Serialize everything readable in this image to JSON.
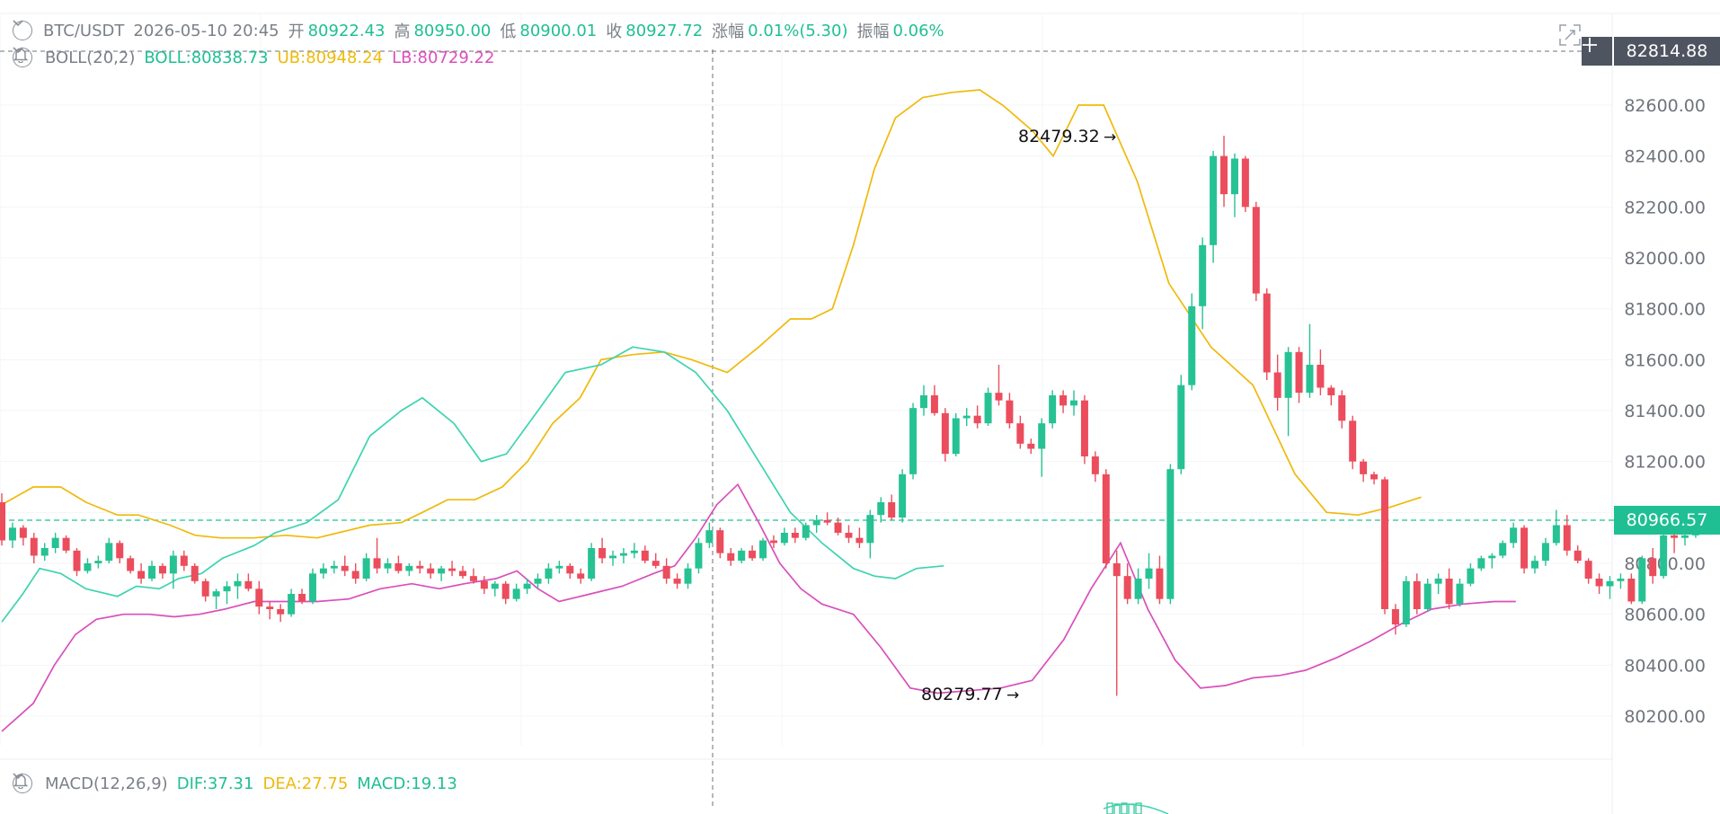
{
  "header": {
    "symbol": "BTC/USDT",
    "datetime": "2026-05-10 20:45",
    "open_label": "开",
    "open": "80922.43",
    "high_label": "高",
    "high": "80950.00",
    "low_label": "低",
    "low": "80900.01",
    "close_label": "收",
    "close": "80927.72",
    "change_label": "涨幅",
    "change": "0.01%(5.30)",
    "amp_label": "振幅",
    "amp": "0.06%"
  },
  "boll": {
    "label": "BOLL(20,2)",
    "mid": "BOLL:80838.73",
    "ub": "UB:80948.24",
    "lb": "LB:80729.22"
  },
  "macd": {
    "label": "MACD(12,26,9)",
    "dif": "DIF:37.31",
    "dea": "DEA:27.75",
    "macd": "MACD:19.13"
  },
  "price_tags": {
    "crosshair": "82814.88",
    "last": "80966.57"
  },
  "annotations": {
    "high": "82479.32",
    "low": "80279.77",
    "arrow": "→"
  },
  "colors": {
    "up": "#26c293",
    "down": "#eb4d5c",
    "mid": "#3dd3b0",
    "ub": "#f0b90b",
    "lb": "#d94fbb",
    "tag_dark": "#4e5460",
    "tag_green": "#1fbf93"
  },
  "chart_data": {
    "type": "candlestick",
    "y_ticks": [
      "82600.00",
      "82400.00",
      "82200.00",
      "82000.00",
      "81800.00",
      "81600.00",
      "81400.00",
      "81200.00",
      "81000.00",
      "80800.00",
      "80600.00",
      "80400.00",
      "80200.00"
    ],
    "ylim": [
      80050,
      82770
    ],
    "candles": [
      [
        81040,
        81075,
        80870,
        80890
      ],
      [
        80890,
        80960,
        80860,
        80940
      ],
      [
        80940,
        80950,
        80870,
        80900
      ],
      [
        80900,
        80920,
        80800,
        80830
      ],
      [
        80830,
        80880,
        80810,
        80860
      ],
      [
        80860,
        80920,
        80840,
        80900
      ],
      [
        80900,
        80910,
        80840,
        80850
      ],
      [
        80850,
        80860,
        80750,
        80770
      ],
      [
        80770,
        80820,
        80760,
        80800
      ],
      [
        80800,
        80830,
        80780,
        80810
      ],
      [
        80810,
        80900,
        80800,
        80880
      ],
      [
        80880,
        80890,
        80800,
        80820
      ],
      [
        80820,
        80830,
        80760,
        80770
      ],
      [
        80770,
        80800,
        80720,
        80740
      ],
      [
        80740,
        80810,
        80730,
        80790
      ],
      [
        80790,
        80800,
        80740,
        80760
      ],
      [
        80760,
        80850,
        80700,
        80830
      ],
      [
        80830,
        80850,
        80770,
        80790
      ],
      [
        80790,
        80800,
        80720,
        80730
      ],
      [
        80730,
        80740,
        80650,
        80670
      ],
      [
        80670,
        80700,
        80620,
        80690
      ],
      [
        80690,
        80730,
        80640,
        80710
      ],
      [
        80710,
        80760,
        80660,
        80730
      ],
      [
        80730,
        80760,
        80690,
        80700
      ],
      [
        80700,
        80730,
        80600,
        80630
      ],
      [
        80630,
        80650,
        80580,
        80620
      ],
      [
        80620,
        80640,
        80570,
        80600
      ],
      [
        80600,
        80700,
        80590,
        80680
      ],
      [
        80680,
        80700,
        80640,
        80650
      ],
      [
        80650,
        80780,
        80640,
        80760
      ],
      [
        80760,
        80800,
        80740,
        80780
      ],
      [
        80780,
        80810,
        80760,
        80790
      ],
      [
        80790,
        80830,
        80750,
        80770
      ],
      [
        80770,
        80800,
        80720,
        80740
      ],
      [
        80740,
        80840,
        80730,
        80820
      ],
      [
        80820,
        80900,
        80760,
        80780
      ],
      [
        80780,
        80820,
        80760,
        80800
      ],
      [
        80800,
        80830,
        80760,
        80770
      ],
      [
        80770,
        80800,
        80750,
        80790
      ],
      [
        80790,
        80810,
        80760,
        80780
      ],
      [
        80780,
        80800,
        80740,
        80760
      ],
      [
        80760,
        80790,
        80730,
        80780
      ],
      [
        80780,
        80810,
        80750,
        80770
      ],
      [
        80770,
        80790,
        80740,
        80750
      ],
      [
        80750,
        80780,
        80720,
        80730
      ],
      [
        80730,
        80750,
        80680,
        80700
      ],
      [
        80700,
        80730,
        80670,
        80720
      ],
      [
        80720,
        80730,
        80640,
        80660
      ],
      [
        80660,
        80720,
        80650,
        80700
      ],
      [
        80700,
        80740,
        80680,
        80720
      ],
      [
        80720,
        80760,
        80700,
        80740
      ],
      [
        80740,
        80800,
        80720,
        80780
      ],
      [
        80780,
        80810,
        80760,
        80790
      ],
      [
        80790,
        80800,
        80740,
        80760
      ],
      [
        80760,
        80780,
        80720,
        80740
      ],
      [
        80740,
        80880,
        80730,
        80860
      ],
      [
        80860,
        80900,
        80800,
        80820
      ],
      [
        80820,
        80850,
        80790,
        80830
      ],
      [
        80830,
        80860,
        80800,
        80840
      ],
      [
        80840,
        80880,
        80820,
        80850
      ],
      [
        80850,
        80870,
        80800,
        80810
      ],
      [
        80810,
        80840,
        80780,
        80790
      ],
      [
        80790,
        80820,
        80720,
        80740
      ],
      [
        80740,
        80760,
        80700,
        80720
      ],
      [
        80720,
        80800,
        80700,
        80780
      ],
      [
        80780,
        80900,
        80760,
        80880
      ],
      [
        80880,
        80960,
        80860,
        80930
      ],
      [
        80930,
        80940,
        80820,
        80840
      ],
      [
        80840,
        80860,
        80790,
        80810
      ],
      [
        80810,
        80860,
        80800,
        80850
      ],
      [
        80850,
        80870,
        80810,
        80820
      ],
      [
        80820,
        80900,
        80810,
        80890
      ],
      [
        80890,
        80910,
        80860,
        80880
      ],
      [
        80880,
        80940,
        80870,
        80920
      ],
      [
        80920,
        80940,
        80880,
        80900
      ],
      [
        80900,
        80960,
        80890,
        80950
      ],
      [
        80950,
        80990,
        80920,
        80970
      ],
      [
        80970,
        81000,
        80950,
        80960
      ],
      [
        80960,
        80980,
        80910,
        80920
      ],
      [
        80920,
        80950,
        80880,
        80900
      ],
      [
        80900,
        80940,
        80860,
        80880
      ],
      [
        80880,
        81010,
        80820,
        80990
      ],
      [
        80990,
        81060,
        80960,
        81040
      ],
      [
        81040,
        81070,
        80970,
        80980
      ],
      [
        80980,
        81170,
        80960,
        81150
      ],
      [
        81150,
        81430,
        81130,
        81410
      ],
      [
        81410,
        81500,
        81380,
        81460
      ],
      [
        81460,
        81500,
        81380,
        81390
      ],
      [
        81390,
        81410,
        81200,
        81230
      ],
      [
        81230,
        81390,
        81220,
        81370
      ],
      [
        81370,
        81410,
        81340,
        81380
      ],
      [
        81380,
        81420,
        81330,
        81350
      ],
      [
        81350,
        81490,
        81340,
        81470
      ],
      [
        81470,
        81580,
        81420,
        81440
      ],
      [
        81440,
        81470,
        81330,
        81350
      ],
      [
        81350,
        81380,
        81250,
        81270
      ],
      [
        81270,
        81290,
        81230,
        81250
      ],
      [
        81250,
        81370,
        81140,
        81350
      ],
      [
        81350,
        81480,
        81330,
        81460
      ],
      [
        81460,
        81480,
        81390,
        81420
      ],
      [
        81420,
        81480,
        81380,
        81440
      ],
      [
        81440,
        81460,
        81190,
        81220
      ],
      [
        81220,
        81240,
        81120,
        81150
      ],
      [
        81150,
        81170,
        80780,
        80800
      ],
      [
        80800,
        80850,
        80279.77,
        80750
      ],
      [
        80750,
        80800,
        80640,
        80660
      ],
      [
        80660,
        80780,
        80640,
        80740
      ],
      [
        80740,
        80840,
        80700,
        80780
      ],
      [
        80780,
        80830,
        80640,
        80660
      ],
      [
        80660,
        81190,
        80640,
        81170
      ],
      [
        81170,
        81540,
        81150,
        81500
      ],
      [
        81500,
        81860,
        81480,
        81810
      ],
      [
        81810,
        82080,
        81720,
        82050
      ],
      [
        82050,
        82420,
        81980,
        82400
      ],
      [
        82400,
        82479.32,
        82200,
        82250
      ],
      [
        82250,
        82410,
        82160,
        82390
      ],
      [
        82390,
        82400,
        82180,
        82200
      ],
      [
        82200,
        82220,
        81830,
        81860
      ],
      [
        81860,
        81880,
        81520,
        81550
      ],
      [
        81550,
        81620,
        81400,
        81450
      ],
      [
        81450,
        81650,
        81300,
        81630
      ],
      [
        81630,
        81650,
        81430,
        81470
      ],
      [
        81470,
        81740,
        81450,
        81580
      ],
      [
        81580,
        81640,
        81460,
        81490
      ],
      [
        81490,
        81500,
        81420,
        81460
      ],
      [
        81460,
        81480,
        81330,
        81360
      ],
      [
        81360,
        81380,
        81170,
        81200
      ],
      [
        81200,
        81210,
        81120,
        81150
      ],
      [
        81150,
        81160,
        81110,
        81130
      ],
      [
        81130,
        81140,
        80600,
        80620
      ],
      [
        80620,
        80640,
        80520,
        80560
      ],
      [
        80560,
        80750,
        80550,
        80730
      ],
      [
        80730,
        80760,
        80600,
        80620
      ],
      [
        80620,
        80740,
        80610,
        80720
      ],
      [
        80720,
        80760,
        80680,
        80740
      ],
      [
        80740,
        80780,
        80620,
        80640
      ],
      [
        80640,
        80740,
        80630,
        80720
      ],
      [
        80720,
        80800,
        80710,
        80780
      ],
      [
        80780,
        80830,
        80770,
        80820
      ],
      [
        80820,
        80840,
        80780,
        80830
      ],
      [
        80830,
        80890,
        80820,
        80880
      ],
      [
        80880,
        80960,
        80860,
        80940
      ],
      [
        80940,
        80950,
        80760,
        80780
      ],
      [
        80780,
        80830,
        80760,
        80810
      ],
      [
        80810,
        80900,
        80790,
        80880
      ],
      [
        80880,
        81010,
        80870,
        80950
      ],
      [
        80950,
        80990,
        80830,
        80850
      ],
      [
        80850,
        80870,
        80800,
        80810
      ],
      [
        80810,
        80820,
        80720,
        80740
      ],
      [
        80740,
        80760,
        80680,
        80710
      ],
      [
        80710,
        80750,
        80660,
        80730
      ],
      [
        80730,
        80760,
        80700,
        80740
      ],
      [
        80740,
        80760,
        80640,
        80650
      ],
      [
        80650,
        80830,
        80640,
        80820
      ],
      [
        80820,
        80860,
        80720,
        80750
      ],
      [
        80750,
        80930,
        80740,
        80910
      ],
      [
        80910,
        80930,
        80840,
        80900
      ],
      [
        80900,
        80940,
        80870,
        80910
      ],
      [
        80910,
        80970,
        80900,
        80950
      ]
    ],
    "boll_mid": [
      [
        0,
        80570
      ],
      [
        10,
        80680
      ],
      [
        18,
        80780
      ],
      [
        28,
        80760
      ],
      [
        40,
        80700
      ],
      [
        55,
        80670
      ],
      [
        64,
        80710
      ],
      [
        75,
        80700
      ],
      [
        84,
        80740
      ],
      [
        95,
        80760
      ],
      [
        105,
        80820
      ],
      [
        120,
        80870
      ],
      [
        130,
        80920
      ],
      [
        145,
        80960
      ],
      [
        160,
        81050
      ],
      [
        175,
        81300
      ],
      [
        190,
        81400
      ],
      [
        200,
        81450
      ],
      [
        215,
        81350
      ],
      [
        228,
        81200
      ],
      [
        240,
        81230
      ],
      [
        255,
        81400
      ],
      [
        268,
        81550
      ],
      [
        285,
        81580
      ],
      [
        300,
        81650
      ],
      [
        315,
        81630
      ],
      [
        330,
        81550
      ],
      [
        345,
        81400
      ],
      [
        360,
        81200
      ],
      [
        375,
        81000
      ],
      [
        390,
        80880
      ],
      [
        405,
        80780
      ],
      [
        415,
        80750
      ],
      [
        425,
        80740
      ],
      [
        435,
        80780
      ],
      [
        448,
        80790
      ]
    ],
    "boll_ub": [
      [
        0,
        81030
      ],
      [
        15,
        81100
      ],
      [
        28,
        81100
      ],
      [
        40,
        81040
      ],
      [
        55,
        80990
      ],
      [
        65,
        80990
      ],
      [
        80,
        80950
      ],
      [
        92,
        80910
      ],
      [
        104,
        80900
      ],
      [
        120,
        80900
      ],
      [
        135,
        80910
      ],
      [
        150,
        80900
      ],
      [
        160,
        80920
      ],
      [
        175,
        80950
      ],
      [
        190,
        80960
      ],
      [
        200,
        81000
      ],
      [
        212,
        81050
      ],
      [
        225,
        81050
      ],
      [
        238,
        81100
      ],
      [
        250,
        81200
      ],
      [
        262,
        81350
      ],
      [
        275,
        81450
      ],
      [
        285,
        81600
      ],
      [
        300,
        81620
      ],
      [
        315,
        81630
      ],
      [
        328,
        81600
      ],
      [
        345,
        81550
      ],
      [
        360,
        81650
      ],
      [
        375,
        81760
      ],
      [
        385,
        81760
      ],
      [
        395,
        81800
      ],
      [
        405,
        82050
      ],
      [
        415,
        82350
      ],
      [
        425,
        82550
      ],
      [
        438,
        82630
      ],
      [
        452,
        82650
      ],
      [
        465,
        82660
      ],
      [
        476,
        82600
      ],
      [
        490,
        82500
      ],
      [
        500,
        82400
      ],
      [
        512,
        82600
      ],
      [
        524,
        82600
      ],
      [
        540,
        82300
      ],
      [
        555,
        81900
      ],
      [
        575,
        81650
      ],
      [
        595,
        81500
      ],
      [
        615,
        81150
      ],
      [
        630,
        81000
      ],
      [
        645,
        80990
      ],
      [
        660,
        81020
      ],
      [
        675,
        81060
      ]
    ],
    "boll_lb": [
      [
        0,
        80140
      ],
      [
        15,
        80250
      ],
      [
        25,
        80400
      ],
      [
        35,
        80520
      ],
      [
        45,
        80580
      ],
      [
        58,
        80600
      ],
      [
        70,
        80600
      ],
      [
        82,
        80590
      ],
      [
        94,
        80600
      ],
      [
        106,
        80620
      ],
      [
        120,
        80650
      ],
      [
        135,
        80650
      ],
      [
        150,
        80650
      ],
      [
        165,
        80660
      ],
      [
        180,
        80700
      ],
      [
        195,
        80720
      ],
      [
        208,
        80700
      ],
      [
        220,
        80720
      ],
      [
        235,
        80740
      ],
      [
        245,
        80770
      ],
      [
        255,
        80700
      ],
      [
        265,
        80650
      ],
      [
        280,
        80680
      ],
      [
        295,
        80710
      ],
      [
        310,
        80760
      ],
      [
        320,
        80790
      ],
      [
        330,
        80900
      ],
      [
        340,
        81030
      ],
      [
        350,
        81110
      ],
      [
        360,
        80960
      ],
      [
        370,
        80800
      ],
      [
        380,
        80700
      ],
      [
        390,
        80640
      ],
      [
        405,
        80600
      ],
      [
        418,
        80470
      ],
      [
        432,
        80310
      ],
      [
        445,
        80290
      ],
      [
        460,
        80300
      ],
      [
        475,
        80310
      ],
      [
        490,
        80340
      ],
      [
        505,
        80500
      ],
      [
        518,
        80700
      ],
      [
        532,
        80880
      ],
      [
        545,
        80620
      ],
      [
        558,
        80420
      ],
      [
        570,
        80310
      ],
      [
        582,
        80320
      ],
      [
        595,
        80350
      ],
      [
        608,
        80360
      ],
      [
        620,
        80380
      ],
      [
        635,
        80430
      ],
      [
        650,
        80490
      ],
      [
        665,
        80560
      ],
      [
        680,
        80620
      ],
      [
        695,
        80640
      ],
      [
        710,
        80650
      ],
      [
        720,
        80650
      ]
    ]
  }
}
